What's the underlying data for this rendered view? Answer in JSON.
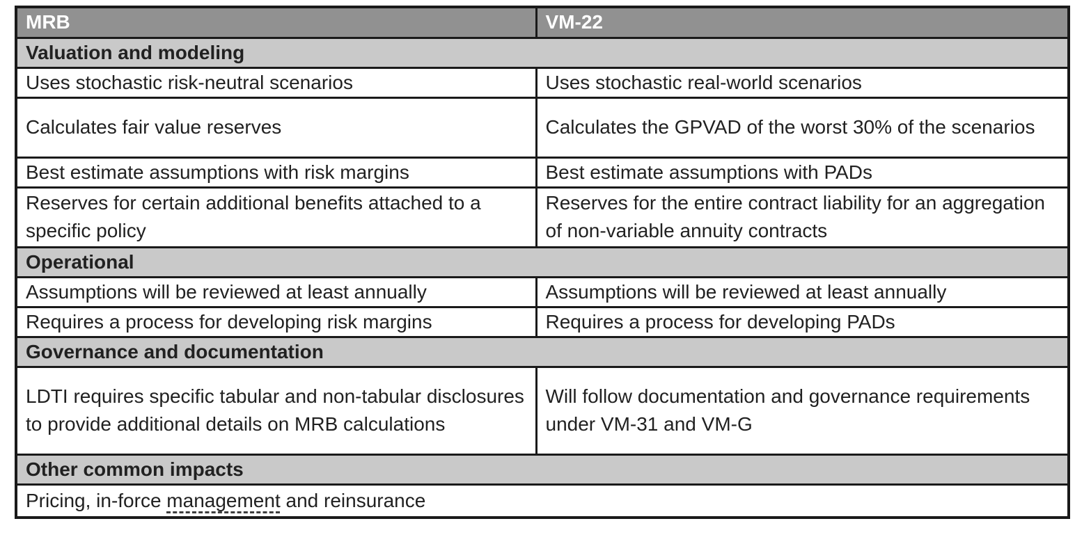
{
  "table": {
    "header": {
      "col1": "MRB",
      "col2": "VM-22"
    },
    "sections": [
      {
        "title": "Valuation and modeling",
        "rows": [
          {
            "mrb": "Uses stochastic risk-neutral scenarios",
            "vm22": "Uses stochastic real-world scenarios"
          },
          {
            "mrb": "Calculates fair value reserves",
            "vm22": "Calculates the GPVAD of the worst 30% of the scenarios"
          },
          {
            "mrb": "Best estimate assumptions with risk margins",
            "vm22": "Best estimate assumptions with PADs"
          },
          {
            "mrb": "Reserves for certain additional benefits attached to a specific policy",
            "vm22": "Reserves for the entire contract liability for an aggregation of non-variable annuity contracts"
          }
        ]
      },
      {
        "title": "Operational",
        "rows": [
          {
            "mrb": "Assumptions will be reviewed at least annually",
            "vm22": "Assumptions will be reviewed at least annually"
          },
          {
            "mrb": "Requires a process for developing risk margins",
            "vm22": "Requires a process for developing PADs"
          }
        ]
      },
      {
        "title": "Governance and documentation",
        "rows": [
          {
            "mrb": "LDTI requires specific tabular and non-tabular disclosures to provide additional details on MRB calculations",
            "vm22": "Will follow documentation and governance requirements under VM-31 and VM-G"
          }
        ]
      },
      {
        "title": "Other common impacts",
        "full_row": {
          "prefix": "Pricing, in-force ",
          "underlined": "management",
          "suffix": " and reinsurance"
        }
      }
    ]
  },
  "colors": {
    "header_bg": "#919191",
    "section_bg": "#c9c9c9",
    "border": "#1a1a1a",
    "header_text": "#ffffff",
    "body_text": "#212121",
    "dash": "#3d3d3d"
  }
}
